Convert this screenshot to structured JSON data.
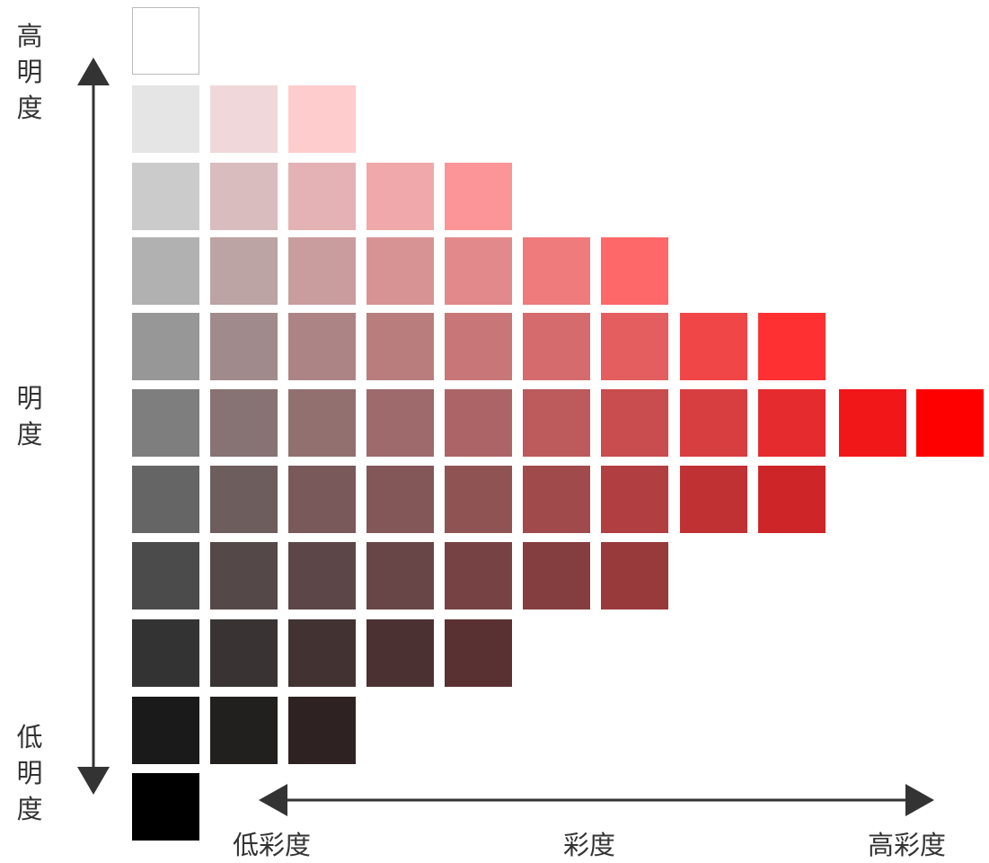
{
  "labels": {
    "high_lightness": "高明度",
    "lightness": "明度",
    "low_lightness": "低明度",
    "low_saturation": "低彩度",
    "saturation": "彩度",
    "high_saturation": "高彩度"
  },
  "colors": {
    "axis": "#333333",
    "text": "#333333"
  },
  "swatch_rows": [
    [
      "#ffffff"
    ],
    [
      "#e5e5e5",
      "#f0d8da",
      "#fecccc"
    ],
    [
      "#cbcbcb",
      "#d8bcbe",
      "#e4b2b4",
      "#f0a8aa",
      "#fb9598"
    ],
    [
      "#b1b1b1",
      "#bca3a4",
      "#c99c9d",
      "#d79394",
      "#e28a8b",
      "#f07b7c",
      "#fe6869"
    ],
    [
      "#979797",
      "#a18a8b",
      "#ad8485",
      "#ba7d7e",
      "#c87677",
      "#d56b6c",
      "#e45e60",
      "#f14648",
      "#fe3032"
    ],
    [
      "#7e7e7e",
      "#877373",
      "#937070",
      "#9e6a6b",
      "#ad6467",
      "#bc5a5c",
      "#c94c4e",
      "#d63e40",
      "#e52b2d",
      "#f11718",
      "#fe0000"
    ],
    [
      "#656565",
      "#6e5d5d",
      "#795959",
      "#835758",
      "#905354",
      "#a14a4c",
      "#b13f41",
      "#c03134",
      "#ce2528"
    ],
    [
      "#4b4b4b",
      "#544849",
      "#5d4647",
      "#684546",
      "#774243",
      "#853e3f",
      "#983a3b"
    ],
    [
      "#333333",
      "#393333",
      "#423232",
      "#4c3133",
      "#5a3133"
    ],
    [
      "#1a1a1a",
      "#221f1f",
      "#2e2222"
    ],
    [
      "#000000"
    ]
  ]
}
